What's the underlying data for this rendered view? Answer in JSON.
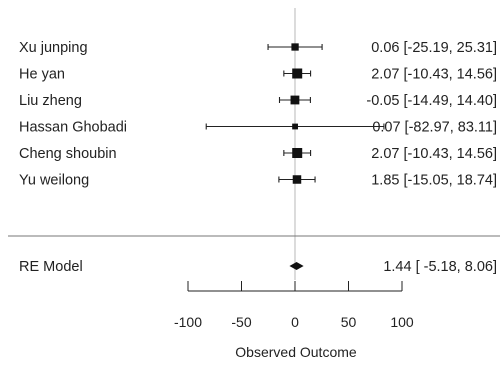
{
  "chart_data": {
    "type": "forest",
    "xlabel": "Observed Outcome",
    "xlim": [
      -100,
      100
    ],
    "xticks": [
      -100,
      -50,
      0,
      50,
      100
    ],
    "reference_line": 0,
    "studies": [
      {
        "label": "Xu junping",
        "estimate": 0.06,
        "ci_low": -25.19,
        "ci_high": 25.31,
        "text": "0.06 [-25.19, 25.31]",
        "weight": 0.55
      },
      {
        "label": "He yan",
        "estimate": 2.07,
        "ci_low": -10.43,
        "ci_high": 14.56,
        "text": "2.07 [-10.43, 14.56]",
        "weight": 1.0
      },
      {
        "label": "Liu zheng",
        "estimate": -0.05,
        "ci_low": -14.49,
        "ci_high": 14.4,
        "text": "-0.05 [-14.49, 14.40]",
        "weight": 0.8
      },
      {
        "label": "Hassan Ghobadi",
        "estimate": 0.07,
        "ci_low": -82.97,
        "ci_high": 83.11,
        "text": "0.07 [-82.97, 83.11]",
        "weight": 0.3
      },
      {
        "label": "Cheng shoubin",
        "estimate": 2.07,
        "ci_low": -10.43,
        "ci_high": 14.56,
        "text": "2.07 [-10.43, 14.56]",
        "weight": 1.0
      },
      {
        "label": "Yu weilong",
        "estimate": 1.85,
        "ci_low": -15.05,
        "ci_high": 18.74,
        "text": "1.85 [-15.05, 18.74]",
        "weight": 0.75
      }
    ],
    "summary": {
      "label": "RE Model",
      "estimate": 1.44,
      "ci_low": -5.18,
      "ci_high": 8.06,
      "text": "1.44 [ -5.18,  8.06]"
    }
  }
}
